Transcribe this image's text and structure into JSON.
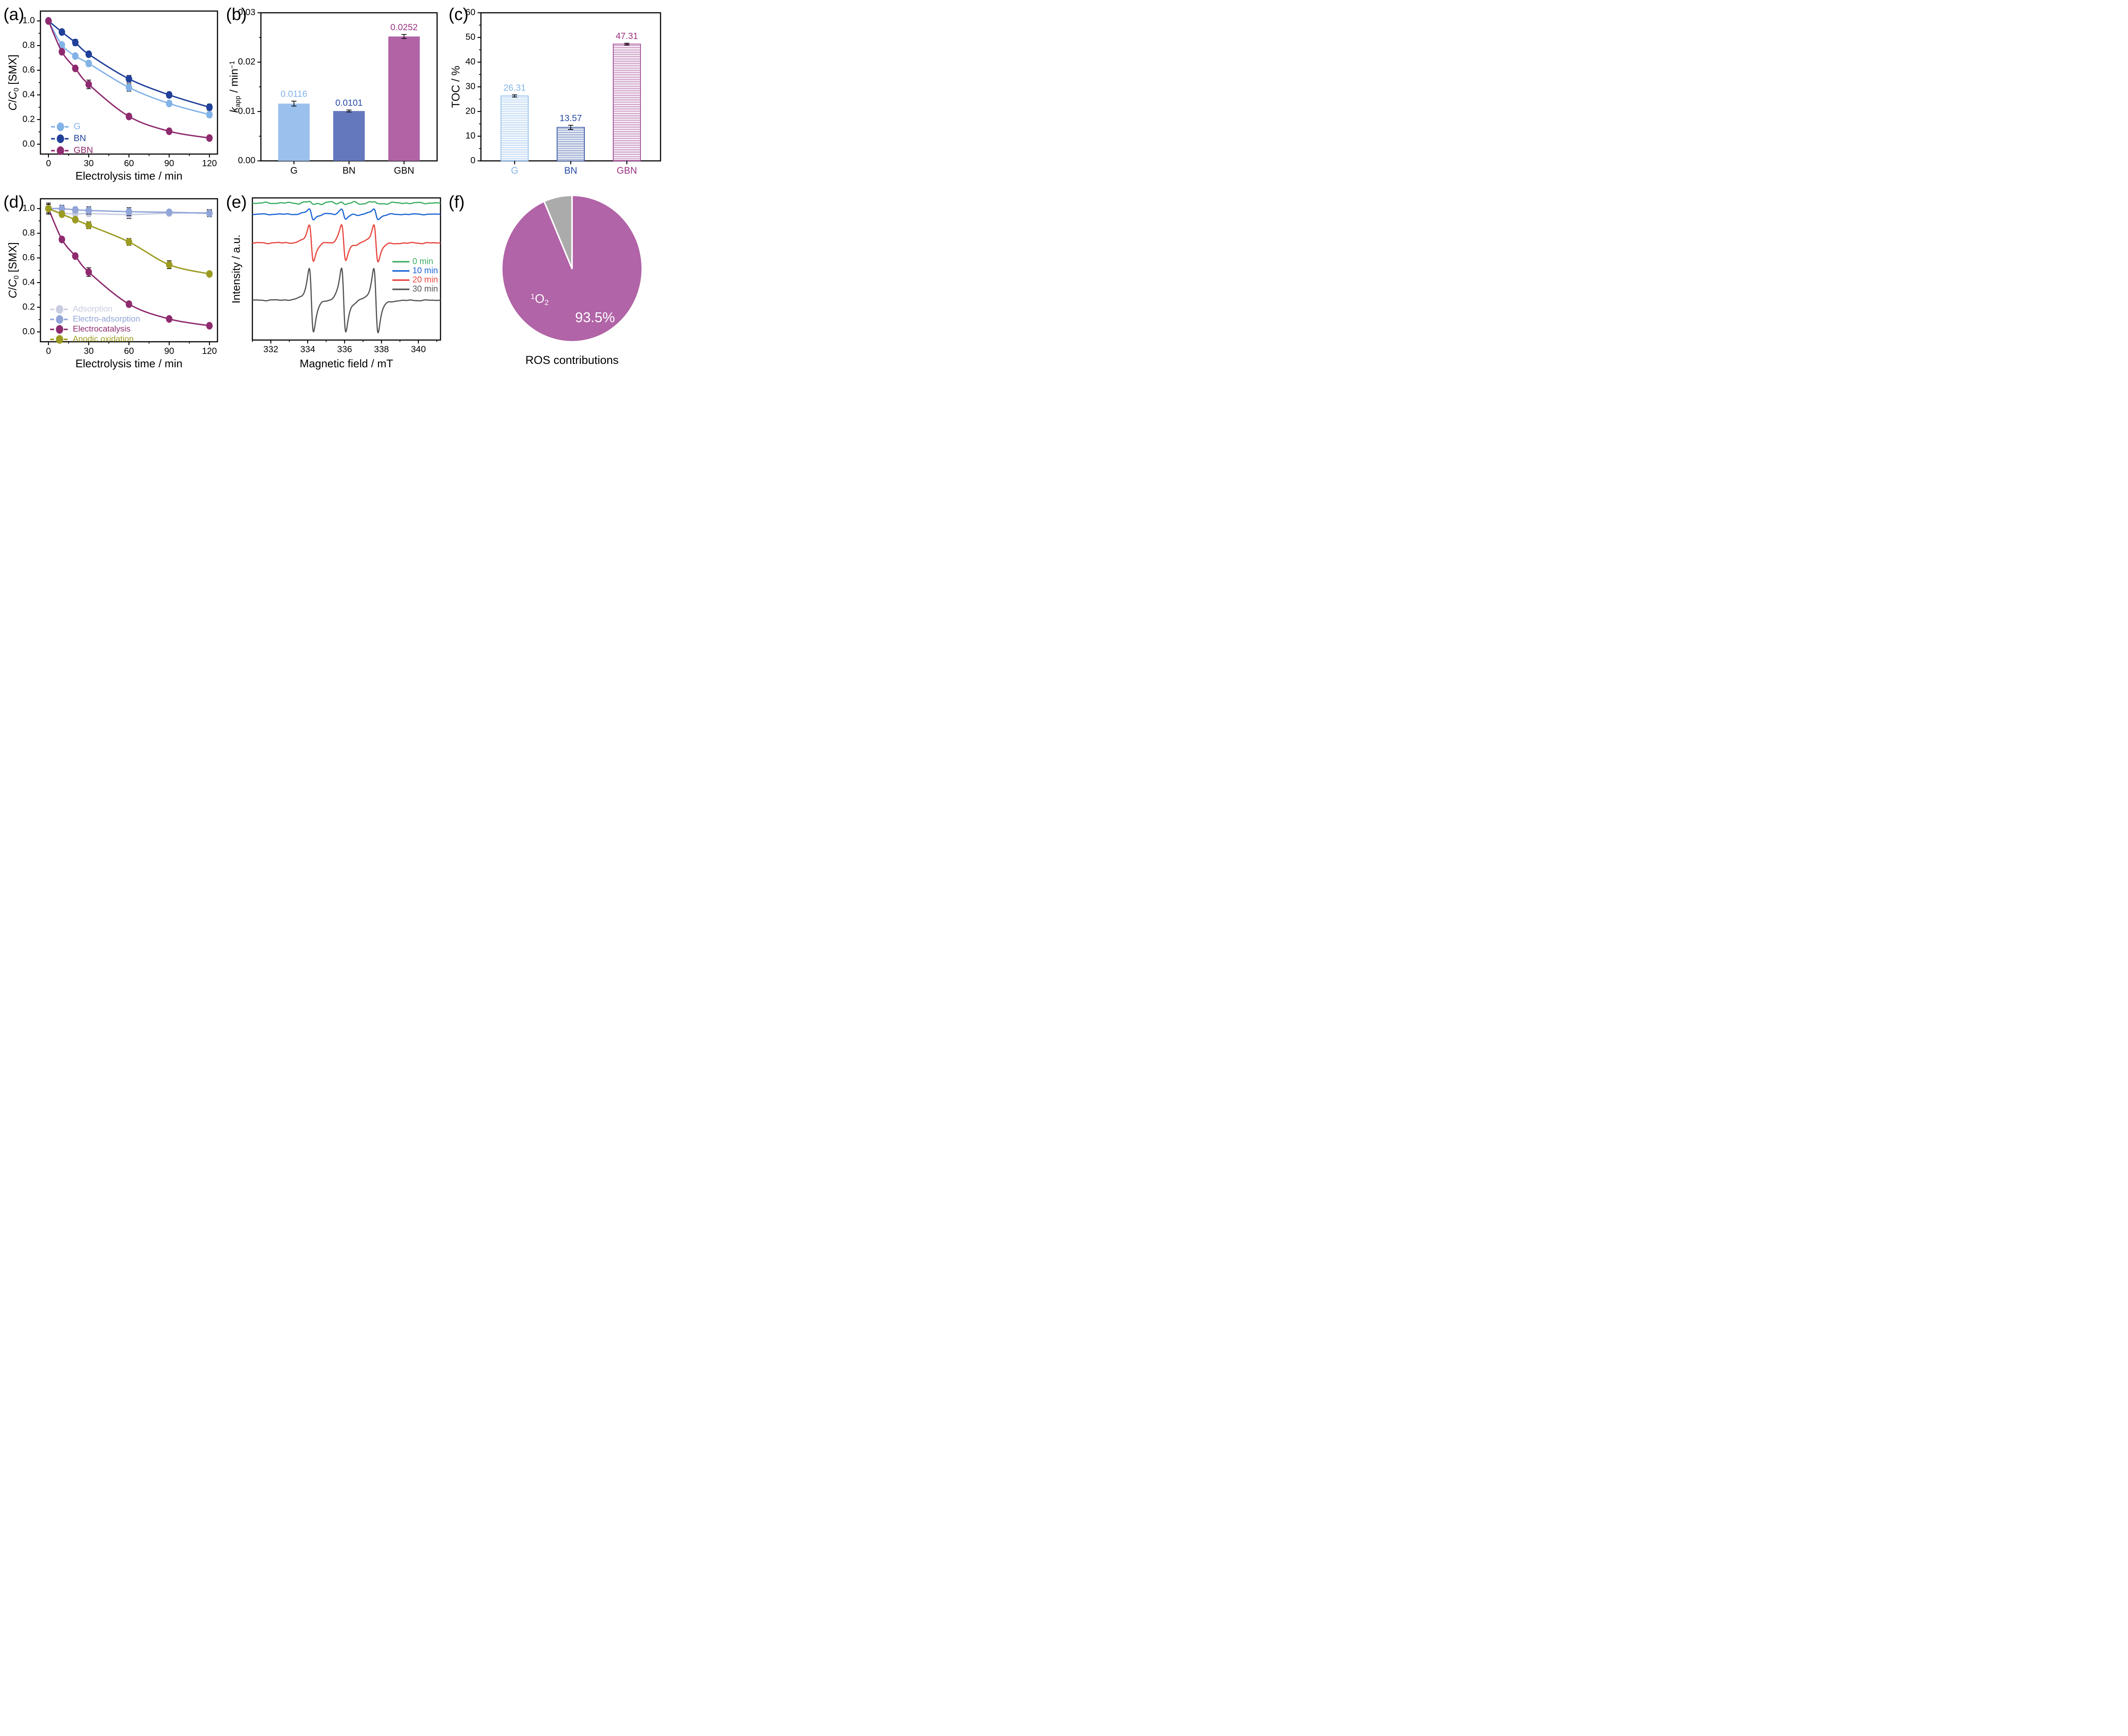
{
  "figure": {
    "background": "#ffffff"
  },
  "chart_data": [
    {
      "panel_label": "(a)",
      "type": "line",
      "xlabel": "Electrolysis time / min",
      "ylabel_rich": [
        {
          "t": "C",
          "s": "i"
        },
        {
          "t": "/"
        },
        {
          "t": "C",
          "s": "i"
        },
        {
          "t": "0",
          "s": "sub"
        },
        {
          "t": " [SMX]"
        }
      ],
      "x": [
        0,
        10,
        20,
        30,
        60,
        90,
        120
      ],
      "xticks": [
        0,
        30,
        60,
        90,
        120
      ],
      "xminor_step": 15,
      "xlim": [
        -6,
        126
      ],
      "ylim": [
        -0.08,
        1.08
      ],
      "yticks": [
        0.0,
        0.2,
        0.4,
        0.6,
        0.8,
        1.0
      ],
      "ydecimals": 1,
      "xdecimals": 0,
      "series": [
        {
          "name": "G",
          "color": "#82B3E8",
          "values": [
            1.0,
            0.805,
            0.715,
            0.655,
            0.46,
            0.33,
            0.24
          ],
          "err": [
            0.012,
            0.018,
            0.02,
            0.022,
            0.03,
            0.018,
            0.022
          ]
        },
        {
          "name": "BN",
          "color": "#20409A",
          "values": [
            1.0,
            0.91,
            0.825,
            0.73,
            0.53,
            0.4,
            0.3
          ],
          "err": [
            0.012,
            0.02,
            0.025,
            0.02,
            0.028,
            0.022,
            0.025
          ]
        },
        {
          "name": "GBN",
          "color": "#8E2B6F",
          "values": [
            1.0,
            0.75,
            0.615,
            0.485,
            0.225,
            0.105,
            0.05
          ],
          "err": [
            0.012,
            0.02,
            0.018,
            0.035,
            0.022,
            0.018,
            0.02
          ]
        }
      ]
    },
    {
      "panel_label": "(b)",
      "type": "bar",
      "ylabel_rich": [
        {
          "t": "k",
          "s": "i"
        },
        {
          "t": "app",
          "s": "sub"
        },
        {
          "t": " / min"
        },
        {
          "t": "−1",
          "s": "sup"
        }
      ],
      "categories": [
        "G",
        "BN",
        "GBN"
      ],
      "values": [
        0.0116,
        0.0101,
        0.0252
      ],
      "errors": [
        0.0005,
        0.0002,
        0.0004
      ],
      "value_labels": [
        "0.0116",
        "0.0101",
        "0.0252"
      ],
      "bar_colors": [
        "#9AC0ED",
        "#6478BE",
        "#B163A6"
      ],
      "label_colors": [
        "#82B3E8",
        "#2448A6",
        "#9A3180"
      ],
      "cat_colors": [
        "#000000",
        "#000000",
        "#000000"
      ],
      "ylim": [
        0,
        0.03
      ],
      "yticks": [
        0.0,
        0.01,
        0.02,
        0.03
      ],
      "yminor_step": 0.005,
      "ydecimals": 2,
      "hatched": false
    },
    {
      "panel_label": "(c)",
      "type": "bar",
      "ylabel_rich": [
        {
          "t": "TOC / %"
        }
      ],
      "categories": [
        "G",
        "BN",
        "GBN"
      ],
      "values": [
        26.31,
        13.57,
        47.31
      ],
      "errors": [
        0.45,
        0.85,
        0.35
      ],
      "value_labels": [
        "26.31",
        "13.57",
        "47.31"
      ],
      "bar_colors": [
        "#8FBCEB",
        "#2B4C9F",
        "#9C4190"
      ],
      "label_colors": [
        "#82B3E8",
        "#2448A6",
        "#9A3180"
      ],
      "cat_colors": [
        "#82B3E8",
        "#2448A6",
        "#9A3180"
      ],
      "ylim": [
        0,
        60
      ],
      "yticks": [
        0,
        10,
        20,
        30,
        40,
        50,
        60
      ],
      "yminor_step": 5,
      "ydecimals": 0,
      "hatched": true
    },
    {
      "panel_label": "(d)",
      "type": "line",
      "xlabel": "Electrolysis time / min",
      "ylabel_rich": [
        {
          "t": "C",
          "s": "i"
        },
        {
          "t": "/"
        },
        {
          "t": "C",
          "s": "i"
        },
        {
          "t": "0",
          "s": "sub"
        },
        {
          "t": " [SMX]"
        }
      ],
      "x": [
        0,
        10,
        20,
        30,
        60,
        90,
        120
      ],
      "xticks": [
        0,
        30,
        60,
        90,
        120
      ],
      "xminor_step": 15,
      "xlim": [
        -6,
        126
      ],
      "ylim": [
        -0.08,
        1.08
      ],
      "yticks": [
        0.0,
        0.2,
        0.4,
        0.6,
        0.8,
        1.0
      ],
      "ydecimals": 1,
      "xdecimals": 0,
      "series": [
        {
          "name": "Adsorption",
          "color": "#C8CDE2",
          "values": [
            1.0,
            0.965,
            0.958,
            0.96,
            0.952,
            0.963,
            0.968
          ],
          "err": [
            0.035,
            0.02,
            0.022,
            0.018,
            0.032,
            0.012,
            0.025
          ]
        },
        {
          "name": "Electro-adsorption",
          "color": "#92A5D8",
          "values": [
            1.0,
            1.0,
            0.99,
            0.985,
            0.975,
            0.97,
            0.962
          ],
          "err": [
            0.035,
            0.028,
            0.022,
            0.03,
            0.032,
            0.018,
            0.028
          ]
        },
        {
          "name": "Electrocatalysis",
          "color": "#8E2B6F",
          "values": [
            1.0,
            0.75,
            0.615,
            0.485,
            0.225,
            0.105,
            0.05
          ],
          "err": [
            0.012,
            0.02,
            0.018,
            0.035,
            0.022,
            0.018,
            0.02
          ]
        },
        {
          "name": "Anodic oxidation",
          "color": "#9C9B21",
          "values": [
            1.0,
            0.955,
            0.91,
            0.865,
            0.73,
            0.545,
            0.47
          ],
          "err": [
            0.045,
            0.022,
            0.015,
            0.028,
            0.028,
            0.032,
            0.02
          ]
        }
      ]
    },
    {
      "panel_label": "(e)",
      "type": "epr",
      "xlabel": "Magnetic field / mT",
      "ylabel_rich": [
        {
          "t": "Intensity / a.u."
        }
      ],
      "xlim": [
        331,
        341.2
      ],
      "xticks": [
        332,
        334,
        336,
        338,
        340
      ],
      "xminor_step": 1,
      "xdecimals": 0,
      "peak_centers": [
        334.2,
        335.95,
        337.7
      ],
      "peak_width": 0.2,
      "series": [
        {
          "name": "0 min",
          "color": "#3BAE63",
          "baseline": 0.036,
          "amp": 0.008,
          "noise": 0.006
        },
        {
          "name": "10 min",
          "color": "#1D66D5",
          "baseline": 0.115,
          "amp": 0.037,
          "noise": 0.004
        },
        {
          "name": "20 min",
          "color": "#E84740",
          "baseline": 0.317,
          "amp": 0.128,
          "noise": 0.005
        },
        {
          "name": "30 min",
          "color": "#565656",
          "baseline": 0.72,
          "amp": 0.225,
          "noise": 0.004
        }
      ]
    },
    {
      "panel_label": "(f)",
      "type": "pie",
      "title": "ROS contributions",
      "slices": [
        {
          "label": "1O2",
          "value": 93.5,
          "color": "#B164A7"
        },
        {
          "label": "",
          "value": 6.5,
          "color": "#ABABAB"
        }
      ],
      "pct_label": "93.5%",
      "slice_label_rich": [
        {
          "t": "1",
          "s": "sup"
        },
        {
          "t": "O"
        },
        {
          "t": "2",
          "s": "sub"
        }
      ]
    }
  ]
}
